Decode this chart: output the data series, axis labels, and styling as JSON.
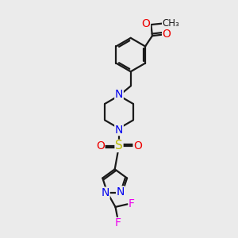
{
  "bg_color": "#ebebeb",
  "bond_color": "#1a1a1a",
  "N_color": "#0000ee",
  "O_color": "#ee0000",
  "S_color": "#bbbb00",
  "F_color": "#ee00ee",
  "line_width": 1.6,
  "font_size": 10,
  "fig_size": [
    3.0,
    3.0
  ],
  "dpi": 100,
  "xlim": [
    0,
    10
  ],
  "ylim": [
    0,
    10
  ]
}
